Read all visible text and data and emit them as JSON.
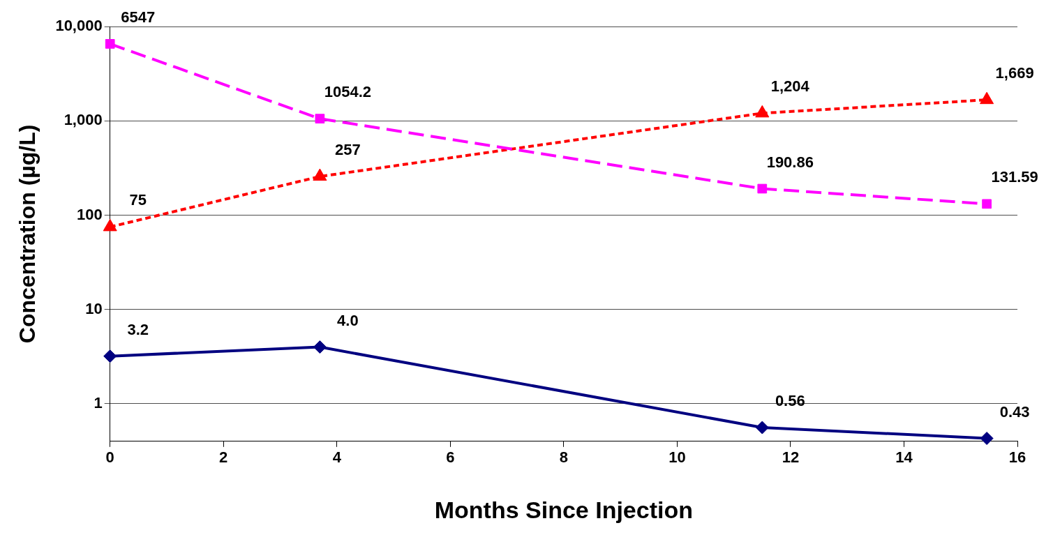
{
  "chart_data": {
    "type": "line",
    "xlabel": "Months Since Injection",
    "ylabel": "Concentration (µg/L)",
    "log": "y",
    "grid": "y",
    "legend": false,
    "xlim": [
      0,
      16
    ],
    "xticks": [
      0,
      2,
      4,
      6,
      8,
      10,
      12,
      14,
      16
    ],
    "ylim": [
      0.4,
      10000
    ],
    "yticks": [
      {
        "value": 1,
        "label": "1"
      },
      {
        "value": 10,
        "label": "10"
      },
      {
        "value": 100,
        "label": "100"
      },
      {
        "value": 1000,
        "label": "1,000"
      },
      {
        "value": 10000,
        "label": "10,000"
      }
    ],
    "x": [
      0,
      3.7,
      11.5,
      15.46
    ],
    "series": [
      {
        "color": "#ff00ff",
        "marker": "square",
        "line_style": "dashed",
        "values": [
          6547,
          1054.2,
          190.86,
          131.59
        ],
        "value_labels": [
          "6547",
          "1054.2",
          "190.86",
          "131.59"
        ]
      },
      {
        "color": "#ff0000",
        "marker": "triangle",
        "line_style": "dotted",
        "values": [
          75,
          257,
          1204,
          1669
        ],
        "value_labels": [
          "75",
          "257",
          "1,204",
          "1,669"
        ]
      },
      {
        "color": "#000080",
        "marker": "diamond",
        "line_style": "solid",
        "values": [
          3.2,
          4.0,
          0.56,
          0.43
        ],
        "value_labels": [
          "3.2",
          "4.0",
          "0.56",
          "0.43"
        ]
      }
    ]
  }
}
